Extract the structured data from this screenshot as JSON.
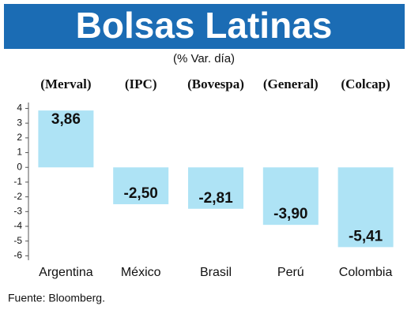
{
  "chart_data": {
    "type": "bar",
    "title": "Bolsas Latinas",
    "subtitle": "(% Var. día)",
    "categories": [
      "Argentina",
      "México",
      "Brasil",
      "Perú",
      "Colombia"
    ],
    "index_labels": [
      "(Merval)",
      "(IPC)",
      "(Bovespa)",
      "(General)",
      "(Colcap)"
    ],
    "values": [
      3.86,
      -2.5,
      -2.81,
      -3.9,
      -5.41
    ],
    "value_labels": [
      "3,86",
      "-2,50",
      "-2,81",
      "-3,90",
      "-5,41"
    ],
    "color": "#aee3f5",
    "ylim": [
      -6.3,
      4.4
    ],
    "yticks": [
      4,
      3,
      2,
      1,
      0,
      -1,
      -2,
      -3,
      -4,
      -5,
      -6
    ],
    "source": "Fuente: Bloomberg."
  }
}
